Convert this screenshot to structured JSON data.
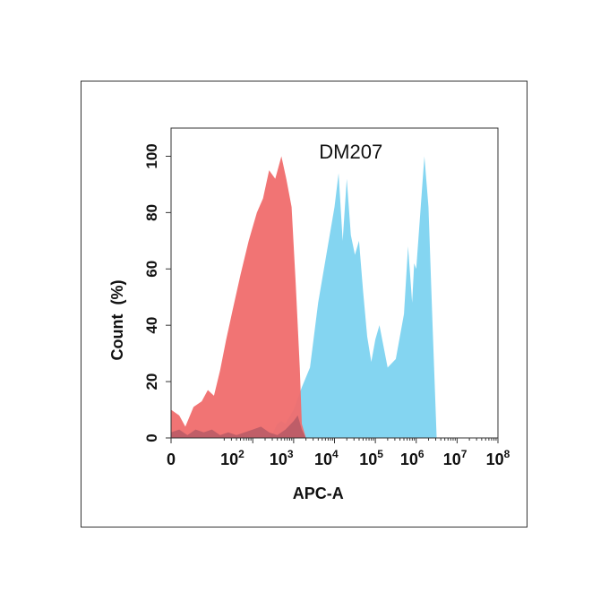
{
  "chart_data": {
    "type": "area",
    "title": "DM207",
    "xlabel": "APC-A",
    "ylabel": "Count  (%)",
    "x_scale": "biexponential-log",
    "xlim_decades": [
      0,
      8
    ],
    "ylim": [
      0,
      110
    ],
    "x_ticks": [
      {
        "base": "0",
        "exp": ""
      },
      {
        "base": "10",
        "exp": "2"
      },
      {
        "base": "10",
        "exp": "3"
      },
      {
        "base": "10",
        "exp": "4"
      },
      {
        "base": "10",
        "exp": "5"
      },
      {
        "base": "10",
        "exp": "6"
      },
      {
        "base": "10",
        "exp": "7"
      },
      {
        "base": "10",
        "exp": "8"
      }
    ],
    "y_ticks": [
      "0",
      "20",
      "40",
      "60",
      "80",
      "100"
    ],
    "grid": false,
    "series": [
      {
        "color": "#f06d6d",
        "x_decade": [
          0,
          0.2,
          0.35,
          0.55,
          0.75,
          0.9,
          1.05,
          1.2,
          1.35,
          1.5,
          1.7,
          1.9,
          2.1,
          2.25,
          2.4,
          2.55,
          2.7,
          2.82,
          2.95,
          3.05,
          3.15,
          3.2,
          3.3
        ],
        "y": [
          10,
          8,
          4,
          11,
          13,
          17,
          15,
          24,
          35,
          45,
          58,
          70,
          80,
          85,
          95,
          92,
          100,
          92,
          82,
          55,
          25,
          5,
          0
        ]
      },
      {
        "color": "#7dd3f0",
        "x_decade": [
          0,
          0.2,
          0.4,
          0.6,
          0.8,
          1.0,
          1.1,
          1.2,
          1.3,
          1.4,
          1.6,
          1.8,
          2.0,
          2.2,
          2.4,
          2.5,
          2.6,
          2.7,
          2.8,
          3.0,
          3.2,
          3.4,
          3.6,
          3.8,
          4.0,
          4.1,
          4.2,
          4.3,
          4.4,
          4.5,
          4.6,
          4.7,
          4.8,
          4.9,
          5.0,
          5.1,
          5.3,
          5.5,
          5.7,
          5.8,
          5.9,
          5.95,
          6.0,
          6.1,
          6.2,
          6.3,
          6.4,
          6.5
        ],
        "y": [
          0,
          0,
          0,
          0,
          0,
          0,
          0,
          0,
          0,
          0,
          0,
          0,
          0,
          0,
          0,
          2,
          5,
          6,
          5,
          10,
          18,
          25,
          48,
          65,
          82,
          94,
          70,
          92,
          72,
          65,
          70,
          52,
          36,
          27,
          35,
          40,
          25,
          28,
          44,
          68,
          48,
          62,
          60,
          80,
          100,
          82,
          40,
          0
        ]
      },
      {
        "color": "#a05060",
        "x_decade": [
          0,
          0.2,
          0.4,
          0.6,
          0.8,
          1.0,
          1.2,
          1.4,
          1.6,
          1.8,
          2.0,
          2.2,
          2.4,
          2.6,
          2.8,
          3.0,
          3.1,
          3.2,
          3.3
        ],
        "y": [
          2,
          3,
          1,
          3,
          2,
          3,
          1,
          2,
          1,
          2,
          3,
          4,
          2,
          1,
          3,
          6,
          8,
          3,
          0
        ]
      }
    ]
  }
}
